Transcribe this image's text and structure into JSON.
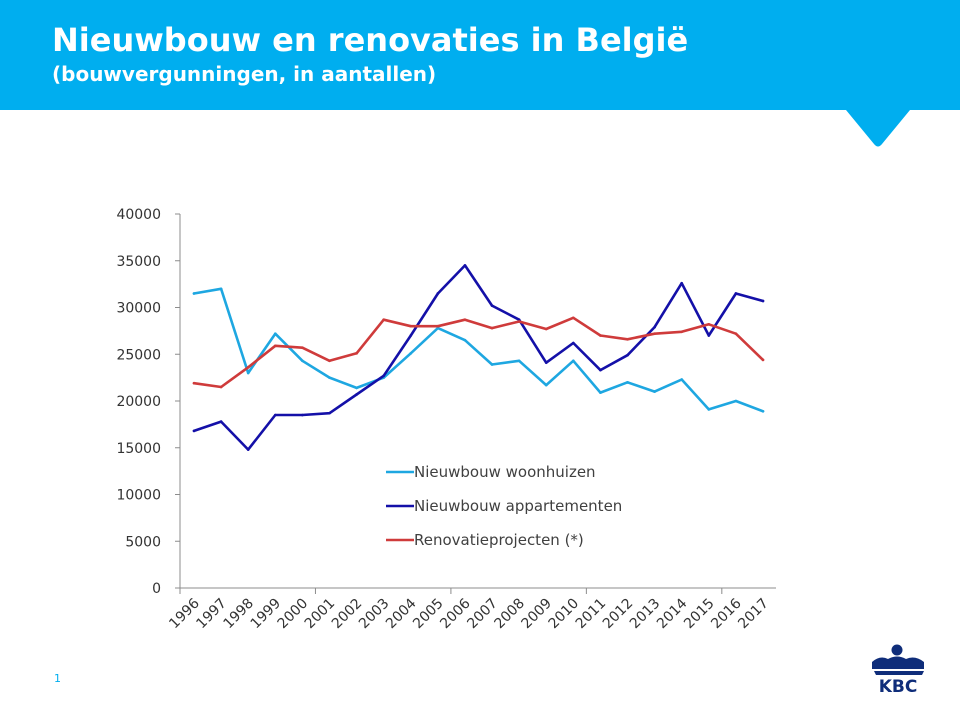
{
  "header": {
    "title": "Nieuwbouw en renovaties in België",
    "subtitle": "(bouwvergunningen, in aantallen)",
    "background_color": "#00aeef"
  },
  "footer": {
    "page_number": "1",
    "logo_text": "KBC",
    "logo_color": "#0f2d7a"
  },
  "chart_data": {
    "type": "line",
    "title": "",
    "xlabel": "",
    "ylabel": "",
    "x": [
      "1996",
      "1997",
      "1998",
      "1999",
      "2000",
      "2001",
      "2002",
      "2003",
      "2004",
      "2005",
      "2006",
      "2007",
      "2008",
      "2009",
      "2010",
      "2011",
      "2012",
      "2013",
      "2014",
      "2015",
      "2016",
      "2017"
    ],
    "ylim": [
      0,
      40000
    ],
    "yticks": [
      0,
      5000,
      10000,
      15000,
      20000,
      25000,
      30000,
      35000,
      40000
    ],
    "grid": false,
    "legend_position": "center",
    "series": [
      {
        "name": "Nieuwbouw woonhuizen",
        "color": "#1ea7e1",
        "values": [
          31500,
          32000,
          23000,
          27200,
          24300,
          22500,
          21400,
          22500,
          25100,
          27800,
          26500,
          23900,
          24300,
          21700,
          24300,
          20900,
          22000,
          21000,
          22300,
          19100,
          20000,
          18900
        ]
      },
      {
        "name": "Nieuwbouw appartementen",
        "color": "#1410a8",
        "values": [
          16800,
          17800,
          14800,
          18500,
          18500,
          18700,
          20700,
          22700,
          27000,
          31500,
          34500,
          30200,
          28700,
          24100,
          26200,
          23300,
          24900,
          27900,
          32600,
          27000,
          31500,
          30700
        ]
      },
      {
        "name": "Renovatieprojecten (*)",
        "color": "#cf3b3b",
        "values": [
          21900,
          21500,
          23600,
          25900,
          25700,
          24300,
          25100,
          28700,
          28000,
          28000,
          28700,
          27800,
          28500,
          27700,
          28900,
          27000,
          26600,
          27200,
          27400,
          28200,
          27200,
          24400
        ]
      }
    ]
  }
}
